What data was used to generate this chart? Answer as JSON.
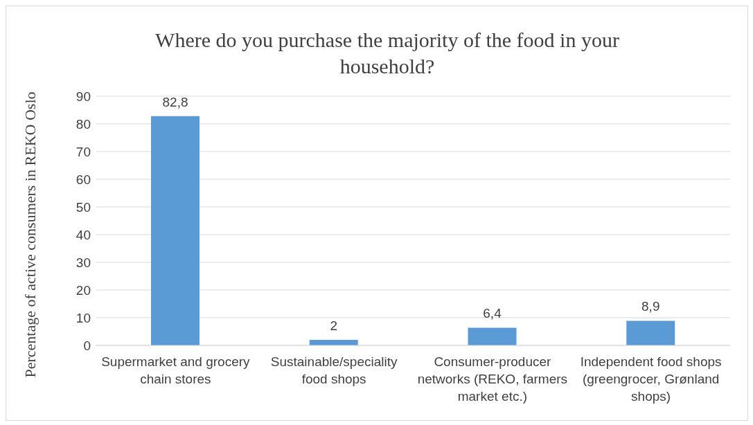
{
  "chart_data": {
    "type": "bar",
    "title": "Where do you purchase the majority of the food in your household?",
    "ylabel": "Percentage of active consumers in REKO Oslo",
    "categories": [
      "Supermarket and grocery chain stores",
      "Sustainable/speciality food shops",
      "Consumer-producer networks (REKO, farmers market etc.)",
      "Independent food shops (greengrocer, Grønland shops)"
    ],
    "values": [
      82.8,
      2,
      6.4,
      8.9
    ],
    "value_labels": [
      "82,8",
      "2",
      "6,4",
      "8,9"
    ],
    "color": "#5b9bd5",
    "ylim": [
      0,
      90
    ],
    "yticks": [
      0,
      10,
      20,
      30,
      40,
      50,
      60,
      70,
      80,
      90
    ],
    "grid": "y",
    "legend": false
  }
}
